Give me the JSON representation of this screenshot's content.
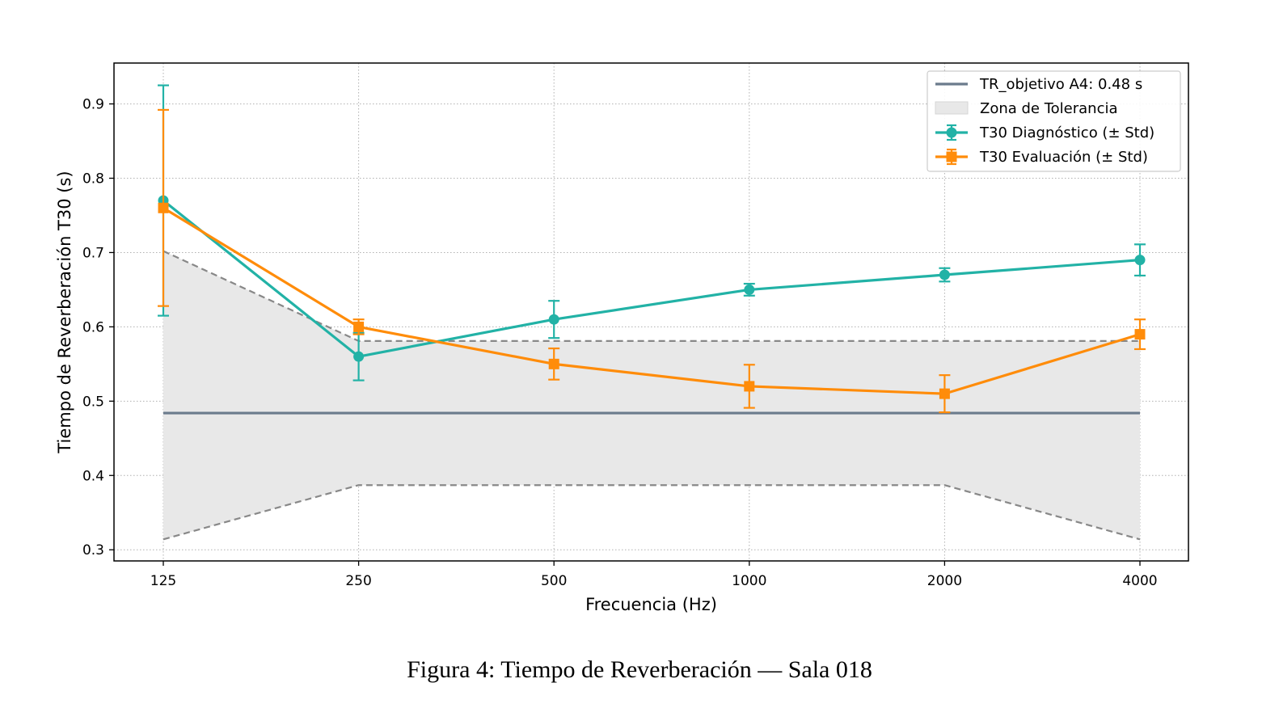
{
  "chart_data": {
    "type": "line",
    "title": "",
    "xlabel": "Frecuencia (Hz)",
    "ylabel": "Tiempo de Reverberación T30 (s)",
    "x_categories": [
      "125",
      "250",
      "500",
      "1000",
      "2000",
      "4000"
    ],
    "ylim": [
      0.285,
      0.955
    ],
    "yticks": [
      0.3,
      0.4,
      0.5,
      0.6,
      0.7,
      0.8,
      0.9
    ],
    "ytick_labels": [
      "0.3",
      "0.4",
      "0.5",
      "0.6",
      "0.7",
      "0.8",
      "0.9"
    ],
    "grid": true,
    "legend_position": "top-right",
    "target": {
      "name": "TR_objetivo A4: 0.48 s",
      "value": 0.484,
      "color": "#6b7b8c"
    },
    "tolerance": {
      "name": "Zona de Tolerancia",
      "upper": [
        0.702,
        0.581,
        0.581,
        0.581,
        0.581,
        0.581
      ],
      "lower": [
        0.314,
        0.387,
        0.387,
        0.387,
        0.387,
        0.314
      ],
      "fill_color": "#e8e8e8",
      "line_color": "#888888"
    },
    "series": [
      {
        "name": "T30 Diagnóstico (± Std)",
        "marker": "circle",
        "color": "#22b2a6",
        "values": [
          0.77,
          0.56,
          0.61,
          0.65,
          0.67,
          0.69
        ],
        "errors": [
          0.155,
          0.032,
          0.025,
          0.008,
          0.009,
          0.021
        ]
      },
      {
        "name": "T30 Evaluación (± Std)",
        "marker": "square",
        "color": "#ff8c0a",
        "values": [
          0.76,
          0.6,
          0.55,
          0.52,
          0.51,
          0.59
        ],
        "errors": [
          0.132,
          0.01,
          0.021,
          0.029,
          0.025,
          0.02
        ]
      }
    ]
  },
  "caption": "Figura 4: Tiempo de Reverberación — Sala 018"
}
